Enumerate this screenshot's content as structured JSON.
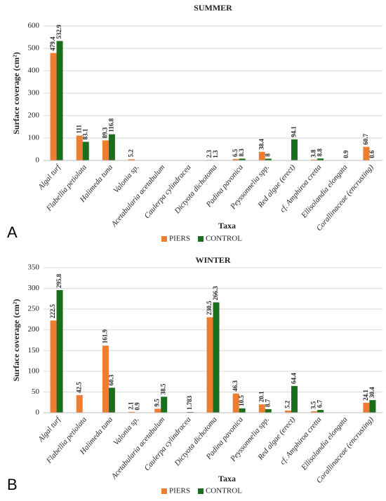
{
  "chart_data": [
    {
      "type": "bar",
      "panel": "A",
      "title": "SUMMER",
      "x_label": "Taxa",
      "y_label": "Surface coverage (cm²)",
      "categories": [
        "Algal turf",
        "Flabellia petiolata",
        "Halimeda tuna",
        "Valonia sp.",
        "Acetabularia acetabulum",
        "Caulerpa cylindracea",
        "Dictyota dichotoma",
        "Padina pavonica",
        "Peyssonnelia spp.",
        "Red algae (erect)",
        "cf. Amphiroa cretta",
        "Ellisolandia elongata",
        "Corallinaceae (encrusting)"
      ],
      "series": [
        {
          "name": "PIERS",
          "color": "#ed7d31",
          "values": [
            479.4,
            111,
            89.3,
            5.2,
            null,
            null,
            2.3,
            6.5,
            38.4,
            null,
            3.8,
            null,
            60.7
          ]
        },
        {
          "name": "CONTROL",
          "color": "#1b6e1b",
          "values": [
            532.9,
            83.1,
            116.8,
            null,
            null,
            null,
            1.3,
            8.3,
            8,
            94.1,
            8.8,
            0.9,
            0.6
          ]
        }
      ],
      "ylim": [
        0,
        600
      ],
      "yticks": [
        0,
        100,
        200,
        300,
        400,
        500,
        600
      ],
      "grid": true,
      "legend": "bottom"
    },
    {
      "type": "bar",
      "panel": "B",
      "title": "WINTER",
      "x_label": "Taxa",
      "y_label": "Surface coverage (cm²)",
      "categories": [
        "Algal turf",
        "Flabellia petiolata",
        "Halimeda tuna",
        "Valonia sp.",
        "Acetabularia acetabulum",
        "Caulerpa cylindracea",
        "Dictyota dichotoma",
        "Padina pavonica",
        "Peyssonnelia spp.",
        "Red algae (erect)",
        "cf. Amphiroa cretta",
        "Ellisolandia elongata",
        "Corallinaceae (encrusting)"
      ],
      "series": [
        {
          "name": "PIERS",
          "color": "#ed7d31",
          "values": [
            222.5,
            42.5,
            161.9,
            2.1,
            9.5,
            null,
            230.5,
            46.3,
            20.1,
            5.2,
            3.5,
            null,
            24.1
          ]
        },
        {
          "name": "CONTROL",
          "color": "#1b6e1b",
          "values": [
            295.8,
            null,
            60.3,
            0.9,
            38.5,
            1.783,
            266.3,
            10.5,
            8.7,
            64.4,
            6.7,
            null,
            30.4
          ]
        }
      ],
      "ylim": [
        0,
        350
      ],
      "yticks": [
        0,
        50,
        100,
        150,
        200,
        250,
        300,
        350
      ],
      "grid": true,
      "legend": "bottom"
    }
  ]
}
